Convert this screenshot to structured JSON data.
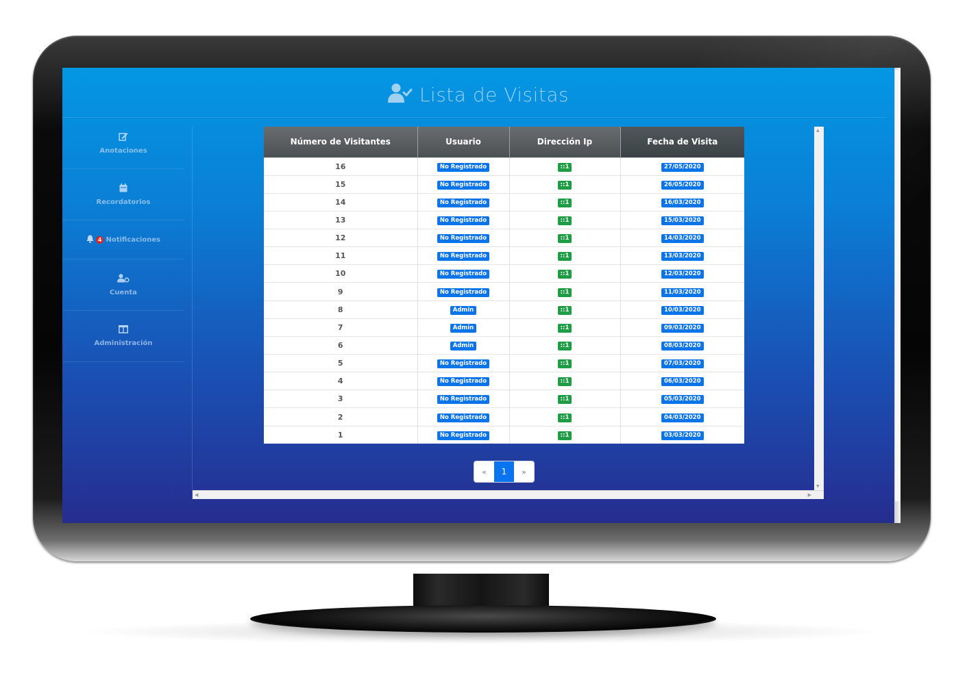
{
  "page": {
    "title": "Lista de Visitas",
    "icon": "user-check-icon"
  },
  "sidebar": {
    "items": [
      {
        "label": "Anotaciones",
        "icon": "edit-icon"
      },
      {
        "label": "Recordatorios",
        "icon": "calendar-icon"
      },
      {
        "label": "Notificaciones",
        "icon": "bell-icon",
        "badge": "4"
      },
      {
        "label": "Cuenta",
        "icon": "user-gear-icon"
      },
      {
        "label": "Administración",
        "icon": "columns-icon"
      }
    ]
  },
  "table": {
    "headers": [
      "Número de Visitantes",
      "Usuario",
      "Dirección Ip",
      "Fecha de Visita"
    ],
    "rows": [
      {
        "num": "16",
        "user": "No Registrado",
        "ip": "::1",
        "date": "27/05/2020"
      },
      {
        "num": "15",
        "user": "No Registrado",
        "ip": "::1",
        "date": "26/05/2020"
      },
      {
        "num": "14",
        "user": "No Registrado",
        "ip": "::1",
        "date": "16/03/2020"
      },
      {
        "num": "13",
        "user": "No Registrado",
        "ip": "::1",
        "date": "15/03/2020"
      },
      {
        "num": "12",
        "user": "No Registrado",
        "ip": "::1",
        "date": "14/03/2020"
      },
      {
        "num": "11",
        "user": "No Registrado",
        "ip": "::1",
        "date": "13/03/2020"
      },
      {
        "num": "10",
        "user": "No Registrado",
        "ip": "::1",
        "date": "12/03/2020"
      },
      {
        "num": "9",
        "user": "No Registrado",
        "ip": "::1",
        "date": "11/03/2020"
      },
      {
        "num": "8",
        "user": "Admin",
        "ip": "::1",
        "date": "10/03/2020"
      },
      {
        "num": "7",
        "user": "Admin",
        "ip": "::1",
        "date": "09/03/2020"
      },
      {
        "num": "6",
        "user": "Admin",
        "ip": "::1",
        "date": "08/03/2020"
      },
      {
        "num": "5",
        "user": "No Registrado",
        "ip": "::1",
        "date": "07/03/2020"
      },
      {
        "num": "4",
        "user": "No Registrado",
        "ip": "::1",
        "date": "06/03/2020"
      },
      {
        "num": "3",
        "user": "No Registrado",
        "ip": "::1",
        "date": "05/03/2020"
      },
      {
        "num": "2",
        "user": "No Registrado",
        "ip": "::1",
        "date": "04/03/2020"
      },
      {
        "num": "1",
        "user": "No Registrado",
        "ip": "::1",
        "date": "03/03/2020"
      }
    ]
  },
  "pagination": {
    "prev": "«",
    "current": "1",
    "next": "»"
  },
  "colors": {
    "badge_blue": "#0a74e8",
    "badge_green": "#1f9d44",
    "screen_top": "#0497e3",
    "screen_bottom": "#262d8f",
    "notif_badge": "#e02424"
  }
}
